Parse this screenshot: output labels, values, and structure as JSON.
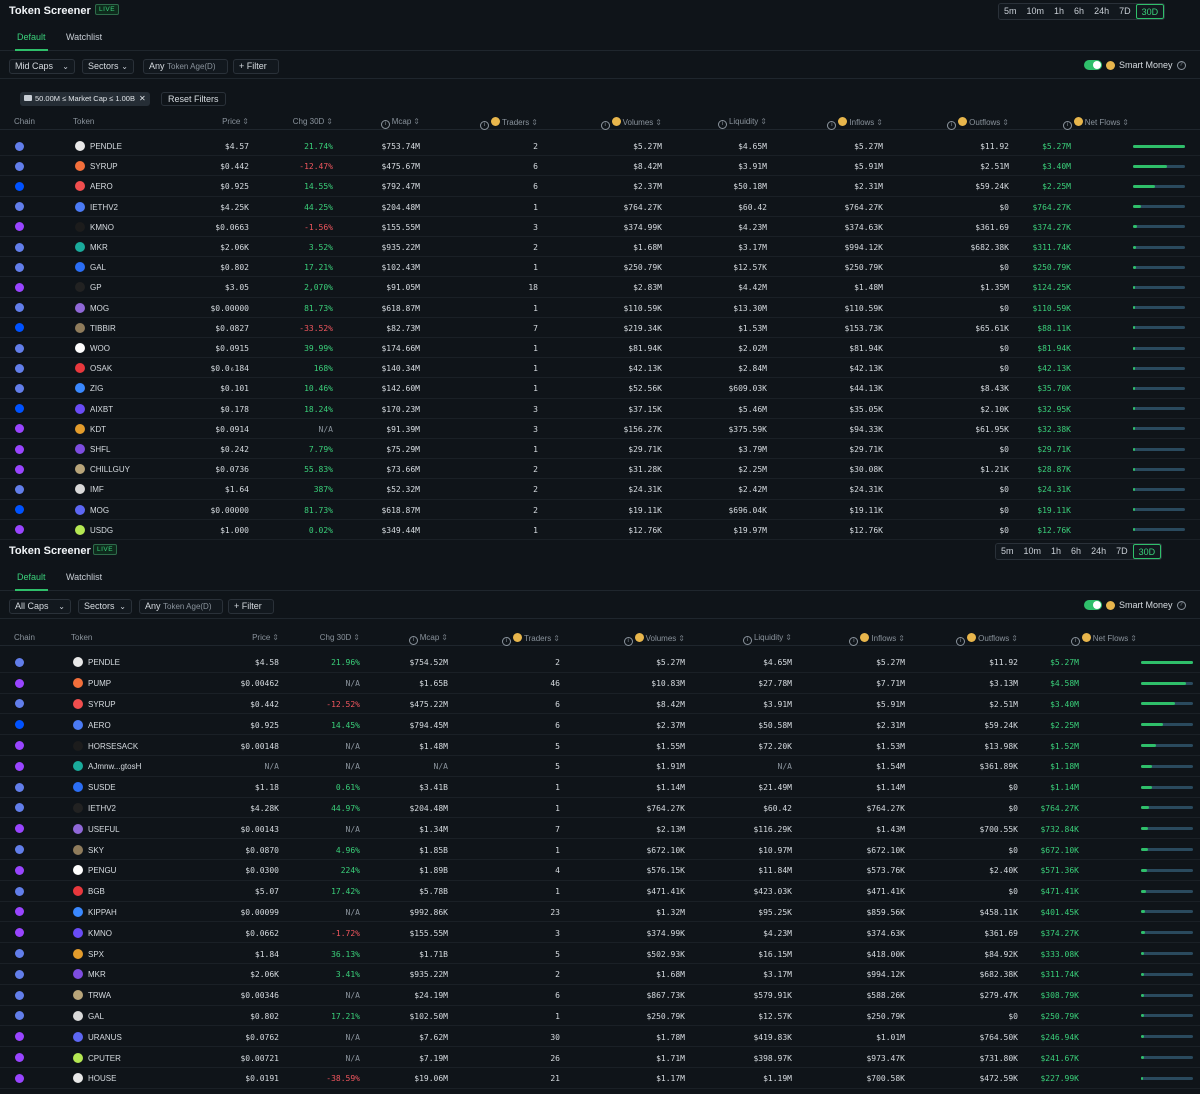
{
  "panels": [
    {
      "title": "Token Screener",
      "live": "LIVE",
      "timeframes": [
        "5m",
        "10m",
        "1h",
        "6h",
        "24h",
        "7D",
        "30D"
      ],
      "active_timeframe": "30D",
      "tabs": [
        "Default",
        "Watchlist"
      ],
      "filters": {
        "caps": "Mid Caps",
        "sectors": "Sectors",
        "age_prefix": "Any",
        "age_label": "Token Age(D)",
        "filter": "+ Filter"
      },
      "smart_money": "Smart Money",
      "chip": "50.00M ≤ Market Cap ≤ 1.00B",
      "reset": "Reset Filters",
      "columns": [
        "Chain",
        "Token",
        "Price",
        "Chg 30D",
        "Mcap",
        "Traders",
        "Volumes",
        "Liquidity",
        "Inflows",
        "Outflows",
        "Net Flows"
      ],
      "rows": [
        {
          "chain": "eth",
          "token": "PENDLE",
          "price": "$4.57",
          "chg": "21.74%",
          "mcap": "$753.74M",
          "traders": "2",
          "volumes": "$5.27M",
          "liquidity": "$4.65M",
          "inflows": "$5.27M",
          "outflows": "$11.92",
          "net": "$5.27M",
          "bar": 1.0
        },
        {
          "chain": "eth",
          "token": "SYRUP",
          "price": "$0.442",
          "chg": "-12.47%",
          "mcap": "$475.67M",
          "traders": "6",
          "volumes": "$8.42M",
          "liquidity": "$3.91M",
          "inflows": "$5.91M",
          "outflows": "$2.51M",
          "net": "$3.40M",
          "bar": 0.65
        },
        {
          "chain": "base",
          "token": "AERO",
          "price": "$0.925",
          "chg": "14.55%",
          "mcap": "$792.47M",
          "traders": "6",
          "volumes": "$2.37M",
          "liquidity": "$50.18M",
          "inflows": "$2.31M",
          "outflows": "$59.24K",
          "net": "$2.25M",
          "bar": 0.43
        },
        {
          "chain": "eth",
          "token": "IETHV2",
          "price": "$4.25K",
          "chg": "44.25%",
          "mcap": "$204.48M",
          "traders": "1",
          "volumes": "$764.27K",
          "liquidity": "$60.42",
          "inflows": "$764.27K",
          "outflows": "$0",
          "net": "$764.27K",
          "bar": 0.15
        },
        {
          "chain": "sol",
          "token": "KMNO",
          "price": "$0.0663",
          "chg": "-1.56%",
          "mcap": "$155.55M",
          "traders": "3",
          "volumes": "$374.99K",
          "liquidity": "$4.23M",
          "inflows": "$374.63K",
          "outflows": "$361.69",
          "net": "$374.27K",
          "bar": 0.07
        },
        {
          "chain": "eth",
          "token": "MKR",
          "price": "$2.06K",
          "chg": "3.52%",
          "mcap": "$935.22M",
          "traders": "2",
          "volumes": "$1.68M",
          "liquidity": "$3.17M",
          "inflows": "$994.12K",
          "outflows": "$682.38K",
          "net": "$311.74K",
          "bar": 0.06
        },
        {
          "chain": "eth",
          "token": "GAL",
          "price": "$0.802",
          "chg": "17.21%",
          "mcap": "$102.43M",
          "traders": "1",
          "volumes": "$250.79K",
          "liquidity": "$12.57K",
          "inflows": "$250.79K",
          "outflows": "$0",
          "net": "$250.79K",
          "bar": 0.05
        },
        {
          "chain": "sol",
          "token": "GP",
          "price": "$3.05",
          "chg": "2,070%",
          "mcap": "$91.05M",
          "traders": "18",
          "volumes": "$2.83M",
          "liquidity": "$4.42M",
          "inflows": "$1.48M",
          "outflows": "$1.35M",
          "net": "$124.25K",
          "bar": 0.03
        },
        {
          "chain": "eth",
          "token": "MOG",
          "price": "$0.00000",
          "chg": "81.73%",
          "mcap": "$618.87M",
          "traders": "1",
          "volumes": "$110.59K",
          "liquidity": "$13.30M",
          "inflows": "$110.59K",
          "outflows": "$0",
          "net": "$110.59K",
          "bar": 0.02
        },
        {
          "chain": "base",
          "token": "TIBBIR",
          "price": "$0.0827",
          "chg": "-33.52%",
          "mcap": "$82.73M",
          "traders": "7",
          "volumes": "$219.34K",
          "liquidity": "$1.53M",
          "inflows": "$153.73K",
          "outflows": "$65.61K",
          "net": "$88.11K",
          "bar": 0.02
        },
        {
          "chain": "eth",
          "token": "WOO",
          "price": "$0.0915",
          "chg": "39.99%",
          "mcap": "$174.66M",
          "traders": "1",
          "volumes": "$81.94K",
          "liquidity": "$2.02M",
          "inflows": "$81.94K",
          "outflows": "$0",
          "net": "$81.94K",
          "bar": 0.02
        },
        {
          "chain": "eth",
          "token": "OSAK",
          "price": "$0.0₆184",
          "chg": "168%",
          "mcap": "$140.34M",
          "traders": "1",
          "volumes": "$42.13K",
          "liquidity": "$2.84M",
          "inflows": "$42.13K",
          "outflows": "$0",
          "net": "$42.13K",
          "bar": 0.01
        },
        {
          "chain": "eth",
          "token": "ZIG",
          "price": "$0.101",
          "chg": "10.46%",
          "mcap": "$142.60M",
          "traders": "1",
          "volumes": "$52.56K",
          "liquidity": "$609.03K",
          "inflows": "$44.13K",
          "outflows": "$8.43K",
          "net": "$35.70K",
          "bar": 0.01
        },
        {
          "chain": "base",
          "token": "AIXBT",
          "price": "$0.178",
          "chg": "18.24%",
          "mcap": "$170.23M",
          "traders": "3",
          "volumes": "$37.15K",
          "liquidity": "$5.46M",
          "inflows": "$35.05K",
          "outflows": "$2.10K",
          "net": "$32.95K",
          "bar": 0.01
        },
        {
          "chain": "sol",
          "token": "KDT",
          "price": "$0.0914",
          "chg": "N/A",
          "mcap": "$91.39M",
          "traders": "3",
          "volumes": "$156.27K",
          "liquidity": "$375.59K",
          "inflows": "$94.33K",
          "outflows": "$61.95K",
          "net": "$32.38K",
          "bar": 0.01
        },
        {
          "chain": "sol",
          "token": "SHFL",
          "price": "$0.242",
          "chg": "7.79%",
          "mcap": "$75.29M",
          "traders": "1",
          "volumes": "$29.71K",
          "liquidity": "$3.79M",
          "inflows": "$29.71K",
          "outflows": "$0",
          "net": "$29.71K",
          "bar": 0.01
        },
        {
          "chain": "sol",
          "token": "CHILLGUY",
          "price": "$0.0736",
          "chg": "55.83%",
          "mcap": "$73.66M",
          "traders": "2",
          "volumes": "$31.28K",
          "liquidity": "$2.25M",
          "inflows": "$30.08K",
          "outflows": "$1.21K",
          "net": "$28.87K",
          "bar": 0.01
        },
        {
          "chain": "eth",
          "token": "IMF",
          "price": "$1.64",
          "chg": "387%",
          "mcap": "$52.32M",
          "traders": "2",
          "volumes": "$24.31K",
          "liquidity": "$2.42M",
          "inflows": "$24.31K",
          "outflows": "$0",
          "net": "$24.31K",
          "bar": 0.005
        },
        {
          "chain": "base",
          "token": "MOG",
          "price": "$0.00000",
          "chg": "81.73%",
          "mcap": "$618.87M",
          "traders": "2",
          "volumes": "$19.11K",
          "liquidity": "$696.04K",
          "inflows": "$19.11K",
          "outflows": "$0",
          "net": "$19.11K",
          "bar": 0.004
        },
        {
          "chain": "sol",
          "token": "USDG",
          "price": "$1.000",
          "chg": "0.02%",
          "mcap": "$349.44M",
          "traders": "1",
          "volumes": "$12.76K",
          "liquidity": "$19.97M",
          "inflows": "$12.76K",
          "outflows": "$0",
          "net": "$12.76K",
          "bar": 0.003
        }
      ]
    },
    {
      "title": "Token Screener",
      "live": "LIVE",
      "timeframes": [
        "5m",
        "10m",
        "1h",
        "6h",
        "24h",
        "7D",
        "30D"
      ],
      "active_timeframe": "30D",
      "tabs": [
        "Default",
        "Watchlist"
      ],
      "filters": {
        "caps": "All Caps",
        "sectors": "Sectors",
        "age_prefix": "Any",
        "age_label": "Token Age(D)",
        "filter": "+ Filter"
      },
      "smart_money": "Smart Money",
      "columns": [
        "Chain",
        "Token",
        "Price",
        "Chg 30D",
        "Mcap",
        "Traders",
        "Volumes",
        "Liquidity",
        "Inflows",
        "Outflows",
        "Net Flows"
      ],
      "rows": [
        {
          "chain": "eth",
          "token": "PENDLE",
          "price": "$4.58",
          "chg": "21.96%",
          "mcap": "$754.52M",
          "traders": "2",
          "volumes": "$5.27M",
          "liquidity": "$4.65M",
          "inflows": "$5.27M",
          "outflows": "$11.92",
          "net": "$5.27M",
          "bar": 1.0
        },
        {
          "chain": "sol",
          "token": "PUMP",
          "price": "$0.00462",
          "chg": "N/A",
          "mcap": "$1.65B",
          "traders": "46",
          "volumes": "$10.83M",
          "liquidity": "$27.78M",
          "inflows": "$7.71M",
          "outflows": "$3.13M",
          "net": "$4.58M",
          "bar": 0.87
        },
        {
          "chain": "eth",
          "token": "SYRUP",
          "price": "$0.442",
          "chg": "-12.52%",
          "mcap": "$475.22M",
          "traders": "6",
          "volumes": "$8.42M",
          "liquidity": "$3.91M",
          "inflows": "$5.91M",
          "outflows": "$2.51M",
          "net": "$3.40M",
          "bar": 0.65
        },
        {
          "chain": "base",
          "token": "AERO",
          "price": "$0.925",
          "chg": "14.45%",
          "mcap": "$794.45M",
          "traders": "6",
          "volumes": "$2.37M",
          "liquidity": "$50.58M",
          "inflows": "$2.31M",
          "outflows": "$59.24K",
          "net": "$2.25M",
          "bar": 0.43
        },
        {
          "chain": "sol",
          "token": "HORSESACK",
          "price": "$0.00148",
          "chg": "N/A",
          "mcap": "$1.48M",
          "traders": "5",
          "volumes": "$1.55M",
          "liquidity": "$72.20K",
          "inflows": "$1.53M",
          "outflows": "$13.98K",
          "net": "$1.52M",
          "bar": 0.29
        },
        {
          "chain": "sol",
          "token": "AJmnw...gtosH",
          "price": "N/A",
          "chg": "N/A",
          "mcap": "N/A",
          "traders": "5",
          "volumes": "$1.91M",
          "liquidity": "N/A",
          "inflows": "$1.54M",
          "outflows": "$361.89K",
          "net": "$1.18M",
          "bar": 0.22
        },
        {
          "chain": "eth",
          "token": "SUSDE",
          "price": "$1.18",
          "chg": "0.61%",
          "mcap": "$3.41B",
          "traders": "1",
          "volumes": "$1.14M",
          "liquidity": "$21.49M",
          "inflows": "$1.14M",
          "outflows": "$0",
          "net": "$1.14M",
          "bar": 0.22
        },
        {
          "chain": "eth",
          "token": "IETHV2",
          "price": "$4.28K",
          "chg": "44.97%",
          "mcap": "$204.48M",
          "traders": "1",
          "volumes": "$764.27K",
          "liquidity": "$60.42",
          "inflows": "$764.27K",
          "outflows": "$0",
          "net": "$764.27K",
          "bar": 0.15
        },
        {
          "chain": "sol",
          "token": "USEFUL",
          "price": "$0.00143",
          "chg": "N/A",
          "mcap": "$1.34M",
          "traders": "7",
          "volumes": "$2.13M",
          "liquidity": "$116.29K",
          "inflows": "$1.43M",
          "outflows": "$700.55K",
          "net": "$732.84K",
          "bar": 0.14
        },
        {
          "chain": "eth",
          "token": "SKY",
          "price": "$0.0870",
          "chg": "4.96%",
          "mcap": "$1.85B",
          "traders": "1",
          "volumes": "$672.10K",
          "liquidity": "$10.97M",
          "inflows": "$672.10K",
          "outflows": "$0",
          "net": "$672.10K",
          "bar": 0.13
        },
        {
          "chain": "sol",
          "token": "PENGU",
          "price": "$0.0300",
          "chg": "224%",
          "mcap": "$1.89B",
          "traders": "4",
          "volumes": "$576.15K",
          "liquidity": "$11.84M",
          "inflows": "$573.76K",
          "outflows": "$2.40K",
          "net": "$571.36K",
          "bar": 0.11
        },
        {
          "chain": "eth",
          "token": "BGB",
          "price": "$5.07",
          "chg": "17.42%",
          "mcap": "$5.78B",
          "traders": "1",
          "volumes": "$471.41K",
          "liquidity": "$423.03K",
          "inflows": "$471.41K",
          "outflows": "$0",
          "net": "$471.41K",
          "bar": 0.09
        },
        {
          "chain": "sol",
          "token": "KIPPAH",
          "price": "$0.00099",
          "chg": "N/A",
          "mcap": "$992.86K",
          "traders": "23",
          "volumes": "$1.32M",
          "liquidity": "$95.25K",
          "inflows": "$859.56K",
          "outflows": "$458.11K",
          "net": "$401.45K",
          "bar": 0.08
        },
        {
          "chain": "sol",
          "token": "KMNO",
          "price": "$0.0662",
          "chg": "-1.72%",
          "mcap": "$155.55M",
          "traders": "3",
          "volumes": "$374.99K",
          "liquidity": "$4.23M",
          "inflows": "$374.63K",
          "outflows": "$361.69",
          "net": "$374.27K",
          "bar": 0.07
        },
        {
          "chain": "eth",
          "token": "SPX",
          "price": "$1.84",
          "chg": "36.13%",
          "mcap": "$1.71B",
          "traders": "5",
          "volumes": "$502.93K",
          "liquidity": "$16.15M",
          "inflows": "$418.00K",
          "outflows": "$84.92K",
          "net": "$333.08K",
          "bar": 0.06
        },
        {
          "chain": "eth",
          "token": "MKR",
          "price": "$2.06K",
          "chg": "3.41%",
          "mcap": "$935.22M",
          "traders": "2",
          "volumes": "$1.68M",
          "liquidity": "$3.17M",
          "inflows": "$994.12K",
          "outflows": "$682.38K",
          "net": "$311.74K",
          "bar": 0.06
        },
        {
          "chain": "eth",
          "token": "TRWA",
          "price": "$0.00346",
          "chg": "N/A",
          "mcap": "$24.19M",
          "traders": "6",
          "volumes": "$867.73K",
          "liquidity": "$579.91K",
          "inflows": "$588.26K",
          "outflows": "$279.47K",
          "net": "$308.79K",
          "bar": 0.06
        },
        {
          "chain": "eth",
          "token": "GAL",
          "price": "$0.802",
          "chg": "17.21%",
          "mcap": "$102.50M",
          "traders": "1",
          "volumes": "$250.79K",
          "liquidity": "$12.57K",
          "inflows": "$250.79K",
          "outflows": "$0",
          "net": "$250.79K",
          "bar": 0.05
        },
        {
          "chain": "sol",
          "token": "URANUS",
          "price": "$0.0762",
          "chg": "N/A",
          "mcap": "$7.62M",
          "traders": "30",
          "volumes": "$1.78M",
          "liquidity": "$419.83K",
          "inflows": "$1.01M",
          "outflows": "$764.50K",
          "net": "$246.94K",
          "bar": 0.05
        },
        {
          "chain": "sol",
          "token": "CPUTER",
          "price": "$0.00721",
          "chg": "N/A",
          "mcap": "$7.19M",
          "traders": "26",
          "volumes": "$1.71M",
          "liquidity": "$398.97K",
          "inflows": "$973.47K",
          "outflows": "$731.80K",
          "net": "$241.67K",
          "bar": 0.05
        },
        {
          "chain": "sol",
          "token": "HOUSE",
          "price": "$0.0191",
          "chg": "-38.59%",
          "mcap": "$19.06M",
          "traders": "21",
          "volumes": "$1.17M",
          "liquidity": "$1.19M",
          "inflows": "$700.58K",
          "outflows": "$472.59K",
          "net": "$227.99K",
          "bar": 0.04
        }
      ]
    }
  ],
  "colors": {
    "bg": "#0f1419",
    "accent": "#2fbf6a",
    "positive": "#3ad07a",
    "negative": "#f0565e",
    "muted": "#8a939c",
    "eth": "#627eea",
    "sol": "#9945ff",
    "base": "#0052ff"
  }
}
